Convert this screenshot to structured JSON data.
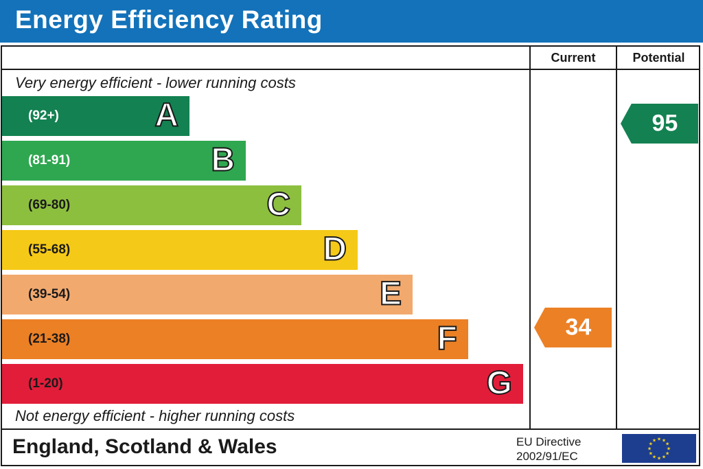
{
  "title": "Energy Efficiency Rating",
  "columns": {
    "current": "Current",
    "potential": "Potential"
  },
  "notes": {
    "top": "Very energy efficient - lower running costs",
    "bottom": "Not energy efficient - higher running costs"
  },
  "footer": {
    "region": "England, Scotland & Wales",
    "directive_line1": "EU Directive",
    "directive_line2": "2002/91/EC"
  },
  "colors": {
    "header": "#1372b9",
    "A": "#138151",
    "B": "#2fa750",
    "C": "#8dbf3f",
    "D": "#f5c917",
    "E": "#f2a96e",
    "F": "#ec8025",
    "G": "#e21d3a",
    "eu_flag": "#1d3d8f",
    "eu_stars": "#f7d417"
  },
  "chart_data": {
    "type": "bar",
    "bands": [
      {
        "letter": "A",
        "range": "(92+)",
        "min": 92,
        "max": 100,
        "color": "#138151",
        "range_color": "#ffffff"
      },
      {
        "letter": "B",
        "range": "(81-91)",
        "min": 81,
        "max": 91,
        "color": "#2fa750",
        "range_color": "#ffffff"
      },
      {
        "letter": "C",
        "range": "(69-80)",
        "min": 69,
        "max": 80,
        "color": "#8dbf3f",
        "range_color": "#1a1a1a"
      },
      {
        "letter": "D",
        "range": "(55-68)",
        "min": 55,
        "max": 68,
        "color": "#f5c917",
        "range_color": "#1a1a1a"
      },
      {
        "letter": "E",
        "range": "(39-54)",
        "min": 39,
        "max": 54,
        "color": "#f2a96e",
        "range_color": "#1a1a1a"
      },
      {
        "letter": "F",
        "range": "(21-38)",
        "min": 21,
        "max": 38,
        "color": "#ec8025",
        "range_color": "#1a1a1a"
      },
      {
        "letter": "G",
        "range": "(1-20)",
        "min": 1,
        "max": 20,
        "color": "#e21d3a",
        "range_color": "#1a1a1a"
      }
    ],
    "current": {
      "value": 34,
      "band": "F",
      "color": "#ec8025"
    },
    "potential": {
      "value": 95,
      "band": "A",
      "color": "#138151"
    }
  }
}
